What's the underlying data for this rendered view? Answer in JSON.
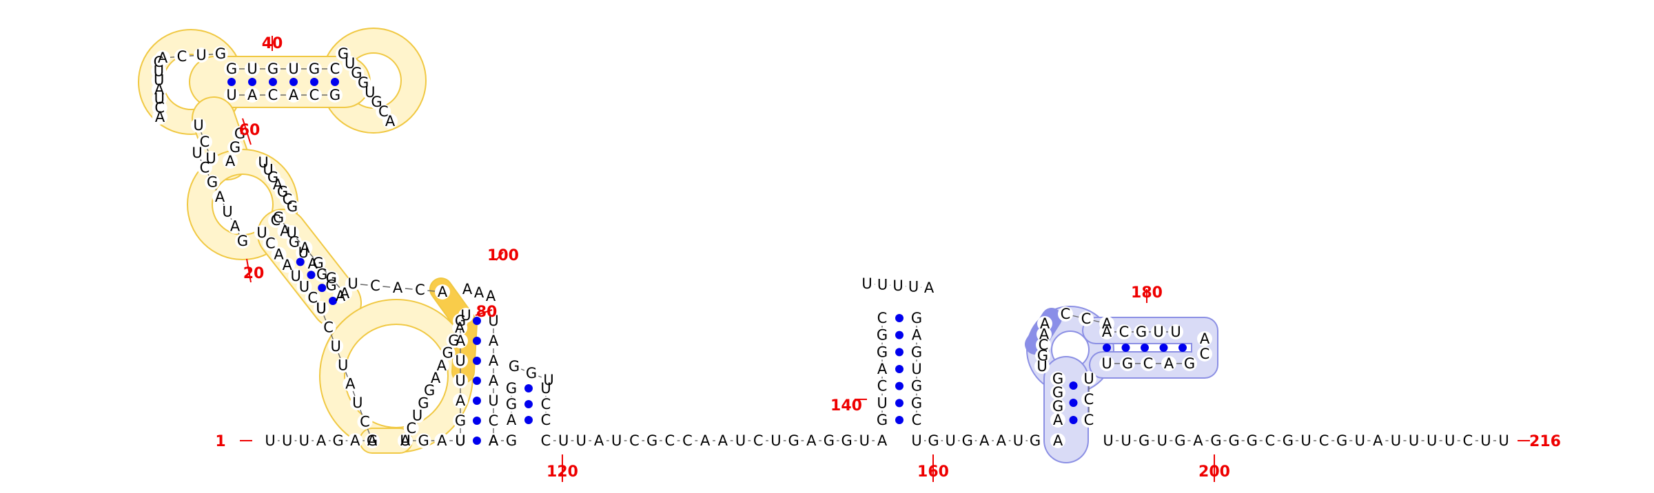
{
  "colors": {
    "yellow_fill": "#fff4cc",
    "yellow_stroke": "#f0c842",
    "yellow_strong": "#f9cc4a",
    "blue_fill": "#d9dbf6",
    "blue_stroke": "#8b8fe4",
    "blue_strong": "#8a8ee8",
    "pair_dot": "#0000ee",
    "numbers": "#ee0000",
    "letters": "#000000"
  },
  "numbering": {
    "start": "1",
    "end": "216",
    "labels": [
      "20",
      "40",
      "60",
      "80",
      "100",
      "120",
      "140",
      "160",
      "180",
      "200"
    ]
  },
  "strands": {
    "baseline_a": "UUUAGAG",
    "baseline_b": "UGAU",
    "baseline_c": "AG",
    "baseline_d": "CUUAUCGCCAAUCUGAGGUA",
    "baseline_e": "UGUGAAUG",
    "baseline_f": "A",
    "baseline_g": "UUGUGAGGGCGUCGUAUUUUCUU",
    "h1_left_up": "ACUAUUCU",
    "h1_right_up": "ACUGGAAGGAU",
    "h1_right_down": "GAUAGCUUUGAGCG",
    "h1_top_pair_top": "GUGUGC",
    "h1_top_pair_bottom": "UACACG",
    "h1_top_loop_right": "GUGGUGCA",
    "h1_lower_strand_a": "AGGAUGAC",
    "h1_lower_strand_b": "UCUUAACU",
    "h1_inner": "UCACA",
    "h2_left": "UGAUUAG",
    "h2_right": "ACUAAAU",
    "h2_top": "AAA",
    "h3_left": "AGG",
    "h3_right": "CCU",
    "h3_top": "GGU",
    "h4_left": "GUCAGGC",
    "h4_right": "CGGUGAG",
    "h4_loop": "UUUUA",
    "h5_left": "AGGG",
    "h5_right": "CCU",
    "h5_loop_a": "UGCAA",
    "h5_loop_b": "CCA",
    "h5_top": "ACGUU",
    "h5_bottom": "UGCAG",
    "h5_tip": "AC"
  }
}
